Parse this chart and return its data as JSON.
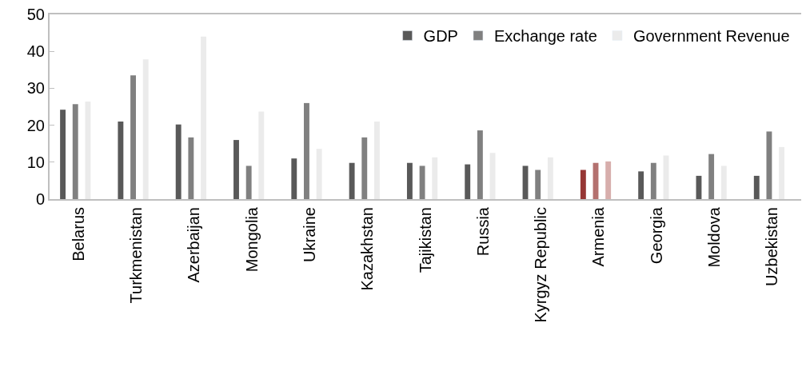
{
  "chart_data": {
    "type": "bar",
    "categories": [
      "Belarus",
      "Turkmenistan",
      "Azerbaijan",
      "Mongolia",
      "Ukraine",
      "Kazakhstan",
      "Tajikistan",
      "Russia",
      "Kyrgyz Republic",
      "Armenia",
      "Georgia",
      "Moldova",
      "Uzbekistan"
    ],
    "series": [
      {
        "name": "GDP",
        "color": "#595959",
        "colors": [
          "#595959",
          "#595959",
          "#595959",
          "#595959",
          "#595959",
          "#595959",
          "#595959",
          "#595959",
          "#595959",
          "#963634",
          "#595959",
          "#595959",
          "#595959"
        ],
        "values": [
          24.2,
          21.0,
          20.2,
          16.0,
          11.0,
          9.8,
          9.8,
          9.4,
          9.0,
          7.9,
          7.5,
          6.3,
          6.3
        ]
      },
      {
        "name": "Exchange rate",
        "color": "#808080",
        "colors": [
          "#808080",
          "#808080",
          "#808080",
          "#808080",
          "#808080",
          "#808080",
          "#808080",
          "#808080",
          "#808080",
          "#b4716f",
          "#808080",
          "#808080",
          "#808080"
        ],
        "values": [
          25.7,
          33.5,
          16.7,
          9.0,
          26.0,
          16.7,
          9.0,
          18.6,
          7.9,
          9.8,
          9.8,
          12.2,
          18.3
        ]
      },
      {
        "name": "Government Revenue",
        "color": "#ebebeb",
        "colors": [
          "#ebebeb",
          "#ebebeb",
          "#ebebeb",
          "#ebebeb",
          "#ebebeb",
          "#ebebeb",
          "#ebebeb",
          "#ebebeb",
          "#ebebeb",
          "#d7aeac",
          "#ebebeb",
          "#ebebeb",
          "#ebebeb"
        ],
        "values": [
          26.4,
          37.8,
          44.0,
          23.7,
          13.6,
          21.0,
          11.3,
          12.5,
          11.3,
          10.2,
          11.8,
          9.0,
          14.1
        ]
      }
    ],
    "ylim": [
      0,
      50
    ],
    "yticks": [
      0,
      10,
      20,
      30,
      40,
      50
    ],
    "grid": false,
    "legend": "top right"
  }
}
